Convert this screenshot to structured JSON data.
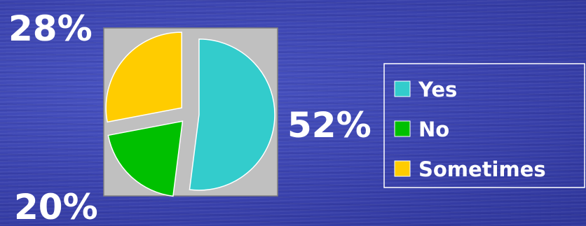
{
  "chart_data": {
    "type": "pie",
    "title": "",
    "categories": [
      "Yes",
      "No",
      "Sometimes"
    ],
    "values": [
      52,
      20,
      28
    ],
    "labels": [
      "52%",
      "20%",
      "28%"
    ],
    "colors": [
      "#33cccc",
      "#00c000",
      "#ffcc00"
    ],
    "plot_background": "#c0c0c0",
    "legend": {
      "position": "right",
      "items": [
        "Yes",
        "No",
        "Sometimes"
      ]
    }
  }
}
